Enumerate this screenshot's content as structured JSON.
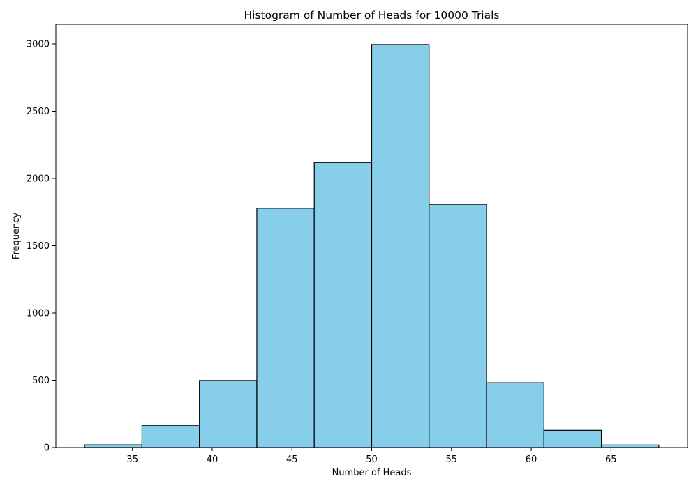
{
  "chart_data": {
    "type": "bar",
    "title": "Histogram of Number of Heads for 10000 Trials",
    "xlabel": "Number of Heads",
    "ylabel": "Frequency",
    "bin_edges": [
      32.0,
      35.6,
      39.2,
      42.8,
      46.4,
      50.0,
      53.6,
      57.2,
      60.8,
      64.4,
      68.0
    ],
    "values": [
      20,
      165,
      498,
      1778,
      2118,
      2995,
      1808,
      481,
      128,
      19
    ],
    "xlim": [
      30.2,
      69.8
    ],
    "ylim": [
      0,
      3145
    ],
    "xticks": [
      35,
      40,
      45,
      50,
      55,
      60,
      65
    ],
    "yticks": [
      0,
      500,
      1000,
      1500,
      2000,
      2500,
      3000
    ],
    "grid": false,
    "legend": "none",
    "bar_color": "#87CEEB",
    "edge_color": "#000000"
  }
}
